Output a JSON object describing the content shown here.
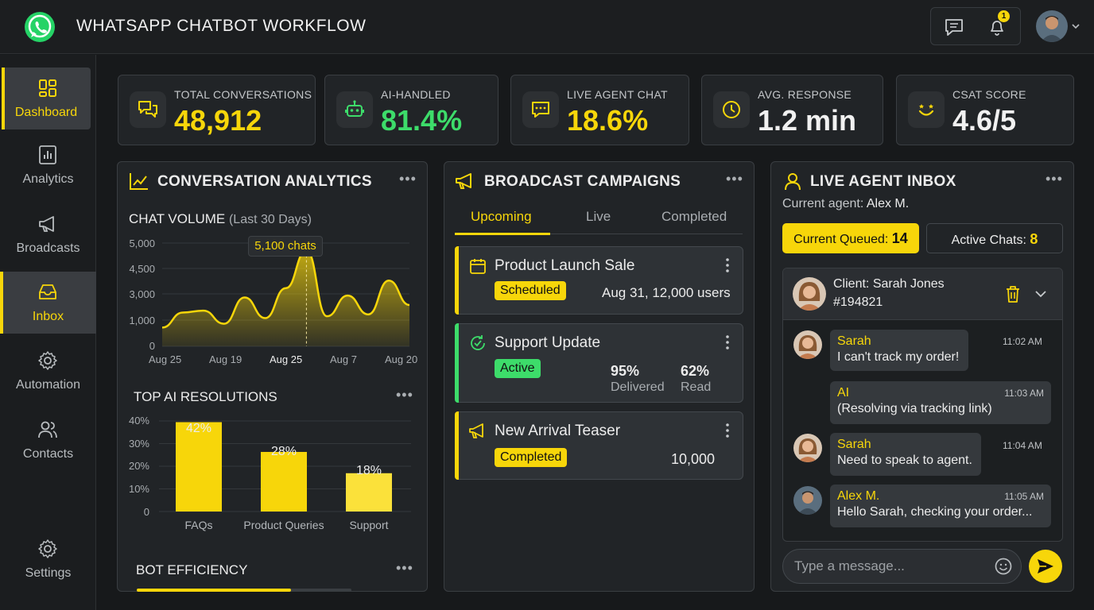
{
  "header": {
    "title": "WHATSAPP CHATBOT WORKFLOW",
    "notification_count": "1"
  },
  "sidebar": {
    "items": [
      {
        "label": "Dashboard",
        "icon": "dashboard-icon",
        "active": true
      },
      {
        "label": "Analytics",
        "icon": "analytics-icon"
      },
      {
        "label": "Broadcasts",
        "icon": "megaphone-icon"
      },
      {
        "label": "Inbox",
        "icon": "inbox-icon",
        "active": true
      },
      {
        "label": "Automation",
        "icon": "gear-icon"
      },
      {
        "label": "Contacts",
        "icon": "contacts-icon"
      },
      {
        "label": "Settings",
        "icon": "settings-icon"
      }
    ]
  },
  "stats": [
    {
      "label": "TOTAL CONVERSATIONS",
      "value": "48,912",
      "color": "#f7d60a"
    },
    {
      "label": "AI-HANDLED",
      "value": "81.4%",
      "color": "#3ddc6a"
    },
    {
      "label": "LIVE AGENT CHAT",
      "value": "18.6%",
      "color": "#f7d60a"
    },
    {
      "label": "AVG. RESPONSE",
      "value": "1.2 min",
      "color": "#f1f1f1"
    },
    {
      "label": "CSAT SCORE",
      "value": "4.6/5",
      "color": "#f1f1f1"
    }
  ],
  "analytics": {
    "title": "CONVERSATION ANALYTICS",
    "volume_title": "CHAT VOLUME",
    "volume_period": "(Last 30 Days)",
    "tooltip": "5,100 chats",
    "resolutions_title": "TOP AI RESOLUTIONS",
    "efficiency_title": "BOT EFFICIENCY"
  },
  "chart_data": [
    {
      "type": "area",
      "title": "CHAT VOLUME",
      "y_ticks": [
        "5,000",
        "4,500",
        "3,000",
        "1,000",
        "0"
      ],
      "x_ticks": [
        "Aug 25",
        "Aug 19",
        "Aug 25",
        "Aug 7",
        "Aug 20"
      ],
      "series": [
        {
          "values": [
            1000,
            1800,
            1900,
            1200,
            2600,
            1500,
            3100,
            5100,
            1600,
            2700,
            1700,
            3500,
            2200
          ]
        }
      ],
      "highlight": {
        "x": "Aug 25",
        "value": 5100
      },
      "color": "#f7d60a"
    },
    {
      "type": "bar",
      "title": "TOP AI RESOLUTIONS",
      "categories": [
        "FAQs",
        "Product Queries",
        "Support"
      ],
      "values": [
        42,
        28,
        18
      ],
      "value_labels": [
        "42%",
        "28%",
        "18%"
      ],
      "y_ticks": [
        "40%",
        "30%",
        "20%",
        "10%",
        "0"
      ],
      "ylim": [
        0,
        40
      ],
      "color": "#f7d60a"
    }
  ],
  "bot_efficiency": {
    "fraction": 0.72
  },
  "broadcasts": {
    "title": "BROADCAST CAMPAIGNS",
    "tabs": [
      "Upcoming",
      "Live",
      "Completed"
    ],
    "campaigns": [
      {
        "title": "Product Launch Sale",
        "status": "Scheduled",
        "detail": "Aug 31,  12,000 users",
        "color": "#f7d60a"
      },
      {
        "title": "Support Update",
        "status": "Active",
        "delivered": "95%",
        "delivered_label": "Delivered",
        "read": "62%",
        "read_label": "Read",
        "color": "#3ddc6a"
      },
      {
        "title": "New Arrival Teaser",
        "status": "Completed",
        "detail": "10,000",
        "color": "#f7d60a"
      }
    ]
  },
  "inbox": {
    "title": "LIVE AGENT INBOX",
    "agent_prefix": "Current agent:",
    "agent": "Alex M.",
    "queued_label": "Current Queued:",
    "queued": "14",
    "active_label": "Active Chats:",
    "active": "8",
    "client_prefix": "Client:",
    "client_name": "Sarah Jones",
    "client_id": "#194821",
    "messages": [
      {
        "who": "Sarah",
        "text": "I can't track my order!",
        "time": "11:02 AM"
      },
      {
        "who": "AI",
        "text": "(Resolving via tracking link)",
        "time": "11:03 AM"
      },
      {
        "who": "Sarah",
        "text": "Need to speak to agent.",
        "time": "11:04 AM"
      },
      {
        "who": "Alex M.",
        "text": "Hello Sarah, checking your order...",
        "time": "11:05 AM"
      }
    ],
    "input_placeholder": "Type a message..."
  }
}
